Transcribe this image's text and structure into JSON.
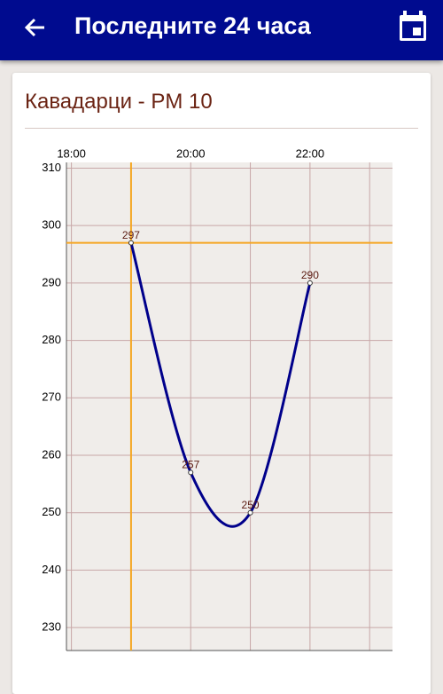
{
  "header": {
    "title": "Последните 24 часа"
  },
  "chart_data": {
    "type": "line",
    "title": "Кавадарци - PM 10",
    "x": [
      "19:00",
      "20:00",
      "21:00",
      "22:00"
    ],
    "values": [
      297,
      257,
      250,
      290
    ],
    "color": "#00008b",
    "xlim": [
      "17:55",
      "23:23"
    ],
    "xticks": [
      "18:00",
      "20:00",
      "22:00"
    ],
    "xminor": [
      "19:00",
      "21:00",
      "23:00"
    ],
    "ylim": [
      226,
      311
    ],
    "yticks": [
      230,
      240,
      250,
      260,
      270,
      280,
      290,
      300,
      310
    ],
    "grid": true,
    "crosshair": {
      "x": "19:00",
      "y": 297,
      "color": "#f5a623"
    }
  }
}
